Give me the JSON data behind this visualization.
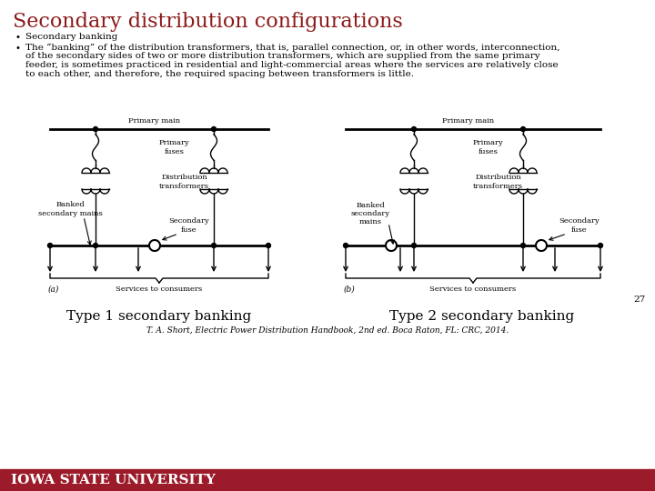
{
  "title": "Secondary distribution configurations",
  "title_color": "#8B1A1A",
  "title_fontsize": 16,
  "bullet1": "Secondary banking",
  "bullet2_lines": [
    "The “banking” of the distribution transformers, that is, parallel connection, or, in other words, interconnection,",
    "of the secondary sides of two or more distribution transformers, which are supplied from the same primary",
    "feeder, is sometimes practiced in residential and light-commercial areas where the services are relatively close",
    "to each other, and therefore, the required spacing between transformers is little."
  ],
  "bullet_fontsize": 7.5,
  "bullet_color": "#000000",
  "caption1": "Type 1 secondary banking",
  "caption2": "Type 2 secondary banking",
  "caption_fontsize": 11,
  "caption_color": "#000000",
  "reference": "T. A. Short, Electric Power Distribution Handbook, 2nd ed. Boca Raton, FL: CRC, 2014.",
  "reference_fontsize": 6.5,
  "page_number": "27",
  "footer_text": "Iowa State University",
  "footer_bg": "#9B1B2A",
  "footer_text_color": "#FFFFFF",
  "footer_fontsize": 11,
  "bg_color": "#FFFFFF",
  "label_a": "(a)",
  "label_b": "(b)",
  "services_text": "Services to consumers",
  "primary_main_text": "Primary main",
  "primary_fuses_text": "Primary\nfuses",
  "distribution_text": "Distribution\ntransformers",
  "banked_secondary_text": "Banked\nsecondary mains",
  "banked_secondary2_text": "Banked\nsecondary\nmains",
  "secondary_fuse_text": "Secondary\nfuse",
  "diagram_text_fontsize": 6.0
}
